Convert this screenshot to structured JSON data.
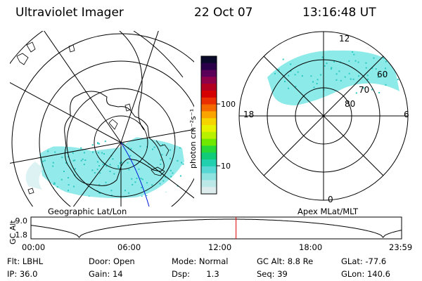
{
  "header": {
    "instrument": "Ultraviolet Imager",
    "date": "22 Oct 07",
    "time": "13:16:48 UT"
  },
  "colors": {
    "aurora": "#7fe8e6",
    "aurora_speckle": "#2dc8c2",
    "accent_marker": "#e00000",
    "trajectory": "#0018d8"
  },
  "left_map": {
    "label": "Geographic Lat/Lon"
  },
  "right_map": {
    "label": "Apex MLat/MLT",
    "lat_labels": [
      "60",
      "70",
      "80"
    ],
    "mlt_labels": {
      "top": "12",
      "left": "18",
      "right": "6",
      "bottom": "0"
    }
  },
  "colorbar": {
    "unit_label": "photon cm⁻²s⁻¹",
    "scale": "log",
    "ticks": [
      "100",
      "10"
    ],
    "colors_top_to_bottom": [
      "#0a0a2a",
      "#2a004a",
      "#5a0058",
      "#8e0048",
      "#b40020",
      "#d40000",
      "#ea3000",
      "#f56a00",
      "#f9a400",
      "#f6d400",
      "#e6f200",
      "#b8f000",
      "#70e800",
      "#28d838",
      "#10cc78",
      "#22d0b0",
      "#58d8d4",
      "#8ee2e0",
      "#bce8e8",
      "#dcecec"
    ]
  },
  "altitude_plot": {
    "ylabel": "GC Alt",
    "yticks": [
      "9.0",
      "1.8"
    ],
    "xticks": [
      "00:00",
      "06:00",
      "12:00",
      "18:00",
      "23:59"
    ],
    "current_time_hours": 13.28
  },
  "info": {
    "flt": {
      "label": "Flt:",
      "value": "LBHL"
    },
    "ip": {
      "label": "IP:",
      "value": "36.0"
    },
    "door": {
      "label": "Door:",
      "value": "Open"
    },
    "gain": {
      "label": "Gain:",
      "value": "14"
    },
    "mode": {
      "label": "Mode:",
      "value": "Normal"
    },
    "dsp": {
      "label": "Dsp:",
      "value": "1.3"
    },
    "gcalt": {
      "label": "GC Alt:",
      "value": "8.8 Re"
    },
    "seq": {
      "label": "Seq:",
      "value": "39"
    },
    "glat": {
      "label": "GLat:",
      "value": "-77.6"
    },
    "glon": {
      "label": "GLon:",
      "value": "140.6"
    }
  }
}
